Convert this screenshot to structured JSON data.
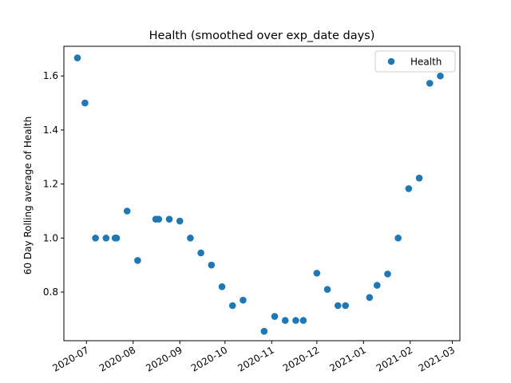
{
  "chart_data": {
    "type": "scatter",
    "title": "Health  (smoothed over exp_date days)",
    "xlabel": "",
    "ylabel": "60 Day Rolling average of Health",
    "legend_position": "top-right",
    "grid": false,
    "xlim": [
      "2020-06-16",
      "2021-03-06"
    ],
    "ylim": [
      0.62,
      1.71
    ],
    "x_ticks": [
      "2020-07",
      "2020-08",
      "2020-09",
      "2020-10",
      "2020-11",
      "2020-12",
      "2021-01",
      "2021-02",
      "2021-03"
    ],
    "y_ticks": [
      "0.8",
      "1.0",
      "1.2",
      "1.4",
      "1.6"
    ],
    "series": [
      {
        "name": "Health",
        "color": "#1f77b4",
        "points": [
          {
            "x": "2020-06-25",
            "y": 1.667
          },
          {
            "x": "2020-06-30",
            "y": 1.5
          },
          {
            "x": "2020-07-07",
            "y": 1.0
          },
          {
            "x": "2020-07-14",
            "y": 1.0
          },
          {
            "x": "2020-07-20",
            "y": 1.0
          },
          {
            "x": "2020-07-21",
            "y": 1.0
          },
          {
            "x": "2020-07-28",
            "y": 1.1
          },
          {
            "x": "2020-08-04",
            "y": 0.917
          },
          {
            "x": "2020-08-16",
            "y": 1.07
          },
          {
            "x": "2020-08-18",
            "y": 1.07
          },
          {
            "x": "2020-08-25",
            "y": 1.07
          },
          {
            "x": "2020-09-01",
            "y": 1.063
          },
          {
            "x": "2020-09-08",
            "y": 1.0
          },
          {
            "x": "2020-09-15",
            "y": 0.945
          },
          {
            "x": "2020-09-22",
            "y": 0.9
          },
          {
            "x": "2020-09-29",
            "y": 0.82
          },
          {
            "x": "2020-10-06",
            "y": 0.75
          },
          {
            "x": "2020-10-13",
            "y": 0.77
          },
          {
            "x": "2020-10-27",
            "y": 0.655
          },
          {
            "x": "2020-11-03",
            "y": 0.71
          },
          {
            "x": "2020-11-10",
            "y": 0.695
          },
          {
            "x": "2020-11-17",
            "y": 0.695
          },
          {
            "x": "2020-11-22",
            "y": 0.695
          },
          {
            "x": "2020-12-01",
            "y": 0.87
          },
          {
            "x": "2020-12-08",
            "y": 0.81
          },
          {
            "x": "2020-12-15",
            "y": 0.75
          },
          {
            "x": "2020-12-20",
            "y": 0.75
          },
          {
            "x": "2021-01-05",
            "y": 0.78
          },
          {
            "x": "2021-01-10",
            "y": 0.825
          },
          {
            "x": "2021-01-17",
            "y": 0.867
          },
          {
            "x": "2021-01-24",
            "y": 1.0
          },
          {
            "x": "2021-01-31",
            "y": 1.183
          },
          {
            "x": "2021-02-07",
            "y": 1.222
          },
          {
            "x": "2021-02-14",
            "y": 1.573
          },
          {
            "x": "2021-02-21",
            "y": 1.6
          }
        ]
      }
    ]
  }
}
